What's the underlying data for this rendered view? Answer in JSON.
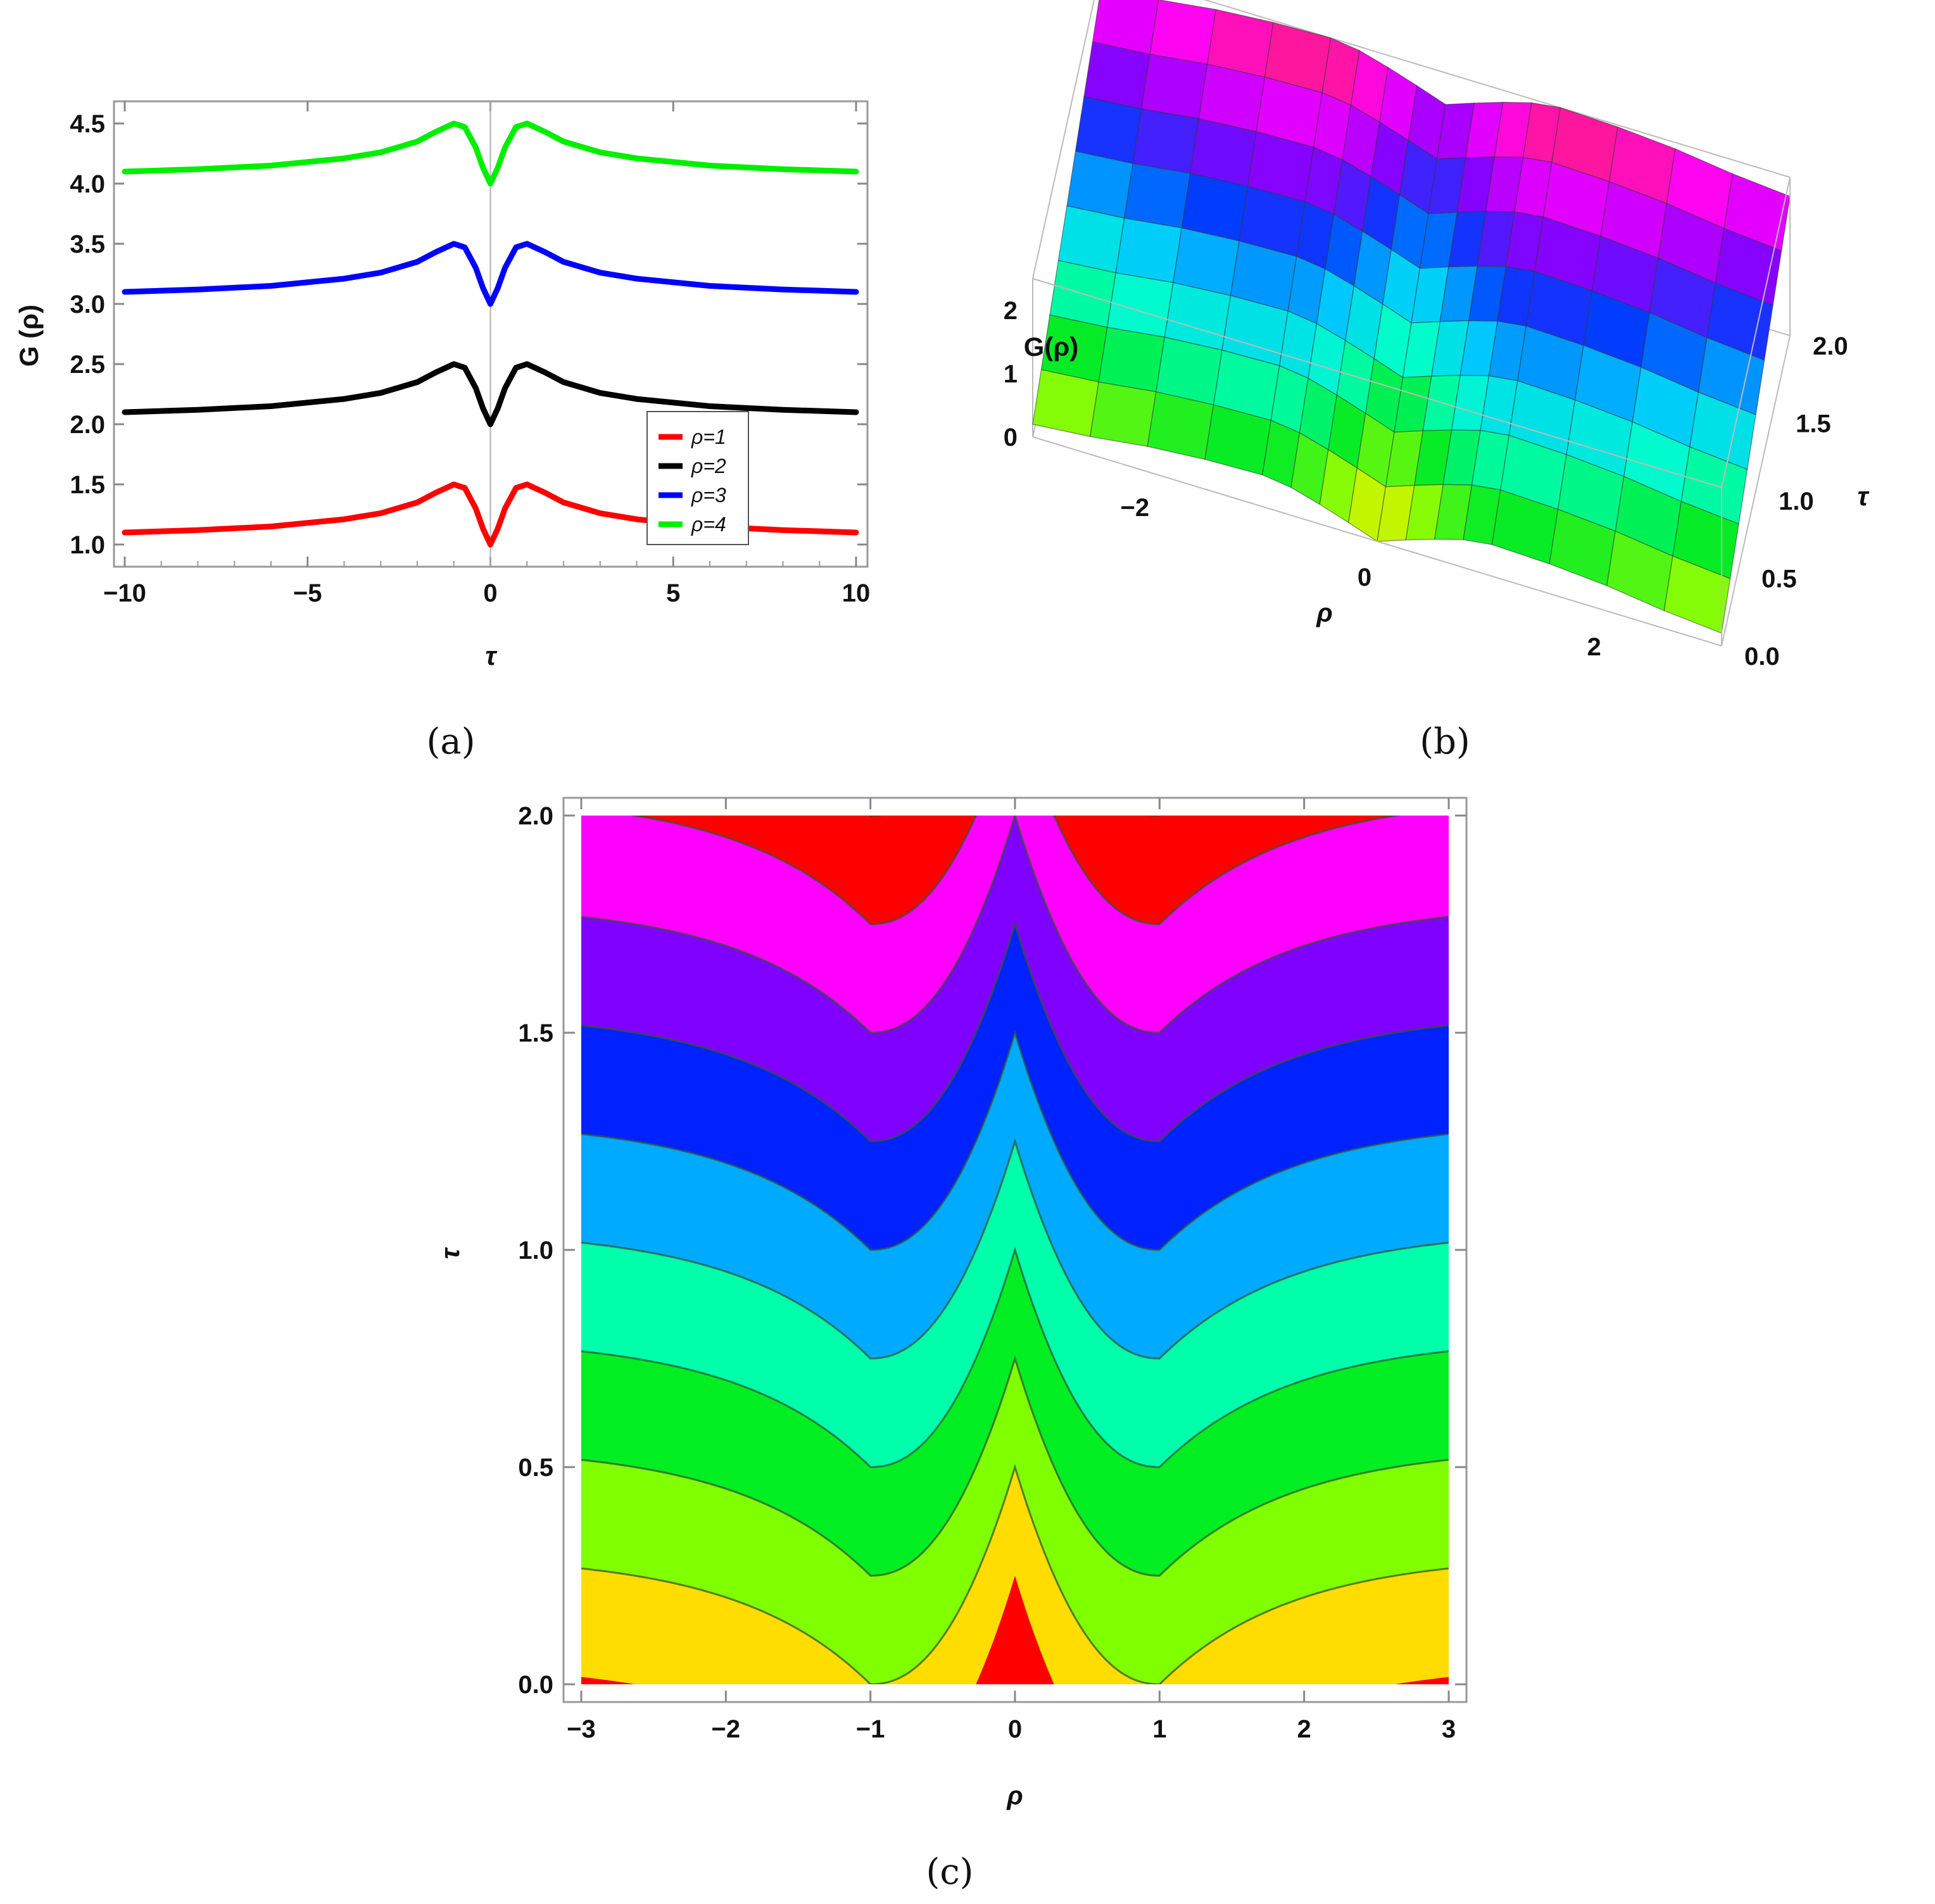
{
  "chart_data": [
    {
      "type": "line",
      "panel": "(a)",
      "xlabel": "τ",
      "ylabel": "G (ρ)",
      "xlim": [
        -10,
        10
      ],
      "ylim": [
        0.9,
        4.7
      ],
      "x_ticks": [
        {
          "v": -10,
          "label": "−10"
        },
        {
          "v": -5,
          "label": "−5"
        },
        {
          "v": 0,
          "label": "0"
        },
        {
          "v": 5,
          "label": "5"
        },
        {
          "v": 10,
          "label": "10"
        }
      ],
      "y_ticks": [
        {
          "v": 1.0,
          "label": "1.0"
        },
        {
          "v": 1.5,
          "label": "1.5"
        },
        {
          "v": 2.0,
          "label": "2.0"
        },
        {
          "v": 2.5,
          "label": "2.5"
        },
        {
          "v": 3.0,
          "label": "3.0"
        },
        {
          "v": 3.5,
          "label": "3.5"
        },
        {
          "v": 4.0,
          "label": "4.0"
        },
        {
          "v": 4.5,
          "label": "4.5"
        }
      ],
      "legend_position": "bottom-right",
      "series": [
        {
          "name": "ρ=1",
          "color": "#ff0000",
          "x": [
            -10,
            -8,
            -6,
            -4,
            -3,
            -2,
            -1.5,
            -1,
            -0.7,
            -0.4,
            -0.2,
            0,
            0.2,
            0.4,
            0.7,
            1,
            1.5,
            2,
            3,
            4,
            6,
            8,
            10
          ],
          "values": [
            1.1,
            1.12,
            1.15,
            1.21,
            1.26,
            1.35,
            1.43,
            1.5,
            1.47,
            1.3,
            1.13,
            1.0,
            1.13,
            1.3,
            1.47,
            1.5,
            1.43,
            1.35,
            1.26,
            1.21,
            1.15,
            1.12,
            1.1
          ]
        },
        {
          "name": "ρ=2",
          "color": "#000000",
          "x": [
            -10,
            -8,
            -6,
            -4,
            -3,
            -2,
            -1.5,
            -1,
            -0.7,
            -0.4,
            -0.2,
            0,
            0.2,
            0.4,
            0.7,
            1,
            1.5,
            2,
            3,
            4,
            6,
            8,
            10
          ],
          "values": [
            2.1,
            2.12,
            2.15,
            2.21,
            2.26,
            2.35,
            2.43,
            2.5,
            2.47,
            2.3,
            2.13,
            2.0,
            2.13,
            2.3,
            2.47,
            2.5,
            2.43,
            2.35,
            2.26,
            2.21,
            2.15,
            2.12,
            2.1
          ]
        },
        {
          "name": "ρ=3",
          "color": "#0000ff",
          "x": [
            -10,
            -8,
            -6,
            -4,
            -3,
            -2,
            -1.5,
            -1,
            -0.7,
            -0.4,
            -0.2,
            0,
            0.2,
            0.4,
            0.7,
            1,
            1.5,
            2,
            3,
            4,
            6,
            8,
            10
          ],
          "values": [
            3.1,
            3.12,
            3.15,
            3.21,
            3.26,
            3.35,
            3.43,
            3.5,
            3.47,
            3.3,
            3.13,
            3.0,
            3.13,
            3.3,
            3.47,
            3.5,
            3.43,
            3.35,
            3.26,
            3.21,
            3.15,
            3.12,
            3.1
          ]
        },
        {
          "name": "ρ=4",
          "color": "#00ee00",
          "x": [
            -10,
            -8,
            -6,
            -4,
            -3,
            -2,
            -1.5,
            -1,
            -0.7,
            -0.4,
            -0.2,
            0,
            0.2,
            0.4,
            0.7,
            1,
            1.5,
            2,
            3,
            4,
            6,
            8,
            10
          ],
          "values": [
            4.1,
            4.12,
            4.15,
            4.21,
            4.26,
            4.35,
            4.43,
            4.5,
            4.47,
            4.3,
            4.13,
            4.0,
            4.13,
            4.3,
            4.47,
            4.5,
            4.43,
            4.35,
            4.26,
            4.21,
            4.15,
            4.12,
            4.1
          ]
        }
      ]
    },
    {
      "type": "surface",
      "panel": "(b)",
      "zlabel": "G(ρ)",
      "xlabel": "ρ",
      "ylabel": "τ",
      "xlim": [
        -3,
        3
      ],
      "ylim": [
        0,
        2
      ],
      "zlim": [
        0,
        2.5
      ],
      "x_ticks": [
        {
          "v": -2,
          "label": "−2"
        },
        {
          "v": 0,
          "label": "0"
        },
        {
          "v": 2,
          "label": "2"
        }
      ],
      "y_ticks": [
        {
          "v": 0.0,
          "label": "0.0"
        },
        {
          "v": 0.5,
          "label": "0.5"
        },
        {
          "v": 1.0,
          "label": "1.0"
        },
        {
          "v": 1.5,
          "label": "1.5"
        },
        {
          "v": 2.0,
          "label": "2.0"
        }
      ],
      "z_ticks": [
        {
          "v": 0,
          "label": "0"
        },
        {
          "v": 1,
          "label": "1"
        },
        {
          "v": 2,
          "label": "2"
        }
      ],
      "rho_samples": [
        -3,
        -2.5,
        -2,
        -1.5,
        -1,
        -0.75,
        -0.5,
        -0.25,
        0,
        0.25,
        0.5,
        0.75,
        1,
        1.5,
        2,
        2.5,
        3
      ],
      "tau_samples": [
        0,
        0.25,
        0.5,
        0.75,
        1,
        1.25,
        1.5,
        1.75,
        2
      ],
      "z_values": [
        [
          0.2,
          0.28,
          0.4,
          0.47,
          0.5,
          0.44,
          0.31,
          0.16,
          0.0,
          0.16,
          0.31,
          0.44,
          0.5,
          0.47,
          0.4,
          0.28,
          0.2
        ],
        [
          0.45,
          0.53,
          0.65,
          0.72,
          0.75,
          0.69,
          0.56,
          0.41,
          0.25,
          0.41,
          0.56,
          0.69,
          0.75,
          0.72,
          0.65,
          0.53,
          0.45
        ],
        [
          0.7,
          0.78,
          0.9,
          0.97,
          1.0,
          0.94,
          0.81,
          0.66,
          0.5,
          0.66,
          0.81,
          0.94,
          1.0,
          0.97,
          0.9,
          0.78,
          0.7
        ],
        [
          0.95,
          1.03,
          1.15,
          1.22,
          1.25,
          1.19,
          1.06,
          0.91,
          0.75,
          0.91,
          1.06,
          1.19,
          1.25,
          1.22,
          1.15,
          1.03,
          0.95
        ],
        [
          1.2,
          1.28,
          1.4,
          1.47,
          1.5,
          1.44,
          1.31,
          1.16,
          1.0,
          1.16,
          1.31,
          1.44,
          1.5,
          1.47,
          1.4,
          1.28,
          1.2
        ],
        [
          1.45,
          1.53,
          1.65,
          1.72,
          1.75,
          1.69,
          1.56,
          1.41,
          1.25,
          1.41,
          1.56,
          1.69,
          1.75,
          1.72,
          1.65,
          1.53,
          1.45
        ],
        [
          1.7,
          1.78,
          1.9,
          1.97,
          2.0,
          1.94,
          1.81,
          1.66,
          1.5,
          1.66,
          1.81,
          1.94,
          2.0,
          1.97,
          1.9,
          1.78,
          1.7
        ],
        [
          1.95,
          2.03,
          2.15,
          2.22,
          2.25,
          2.19,
          2.06,
          1.91,
          1.75,
          1.91,
          2.06,
          2.19,
          2.25,
          2.22,
          2.15,
          2.03,
          1.95
        ],
        [
          2.2,
          2.28,
          2.4,
          2.47,
          2.5,
          2.44,
          2.31,
          2.16,
          2.0,
          2.16,
          2.31,
          2.44,
          2.5,
          2.47,
          2.4,
          2.28,
          2.2
        ]
      ]
    },
    {
      "type": "contour",
      "panel": "(c)",
      "xlabel": "ρ",
      "ylabel": "τ",
      "xlim": [
        -3,
        3
      ],
      "ylim": [
        0,
        2
      ],
      "x_ticks": [
        {
          "v": -3,
          "label": "−3"
        },
        {
          "v": -2,
          "label": "−2"
        },
        {
          "v": -1,
          "label": "−1"
        },
        {
          "v": 0,
          "label": "0"
        },
        {
          "v": 1,
          "label": "1"
        },
        {
          "v": 2,
          "label": "2"
        },
        {
          "v": 3,
          "label": "3"
        }
      ],
      "y_ticks": [
        {
          "v": 0.0,
          "label": "0.0"
        },
        {
          "v": 0.5,
          "label": "0.5"
        },
        {
          "v": 1.0,
          "label": "1.0"
        },
        {
          "v": 1.5,
          "label": "1.5"
        },
        {
          "v": 2.0,
          "label": "2.0"
        }
      ],
      "level_offset": 0.5,
      "levels": [
        0,
        0.25,
        0.5,
        0.75,
        1.0,
        1.25,
        1.5,
        1.75,
        2.0
      ],
      "band_colors": [
        "#ff0000",
        "#ffdd00",
        "#80ff00",
        "#00ee22",
        "#00ffaa",
        "#00aaff",
        "#0022ff",
        "#8000ff",
        "#ff00ff",
        "#ff0000"
      ]
    }
  ],
  "captions": {
    "a": "(a)",
    "b": "(b)",
    "c": "(c)"
  }
}
